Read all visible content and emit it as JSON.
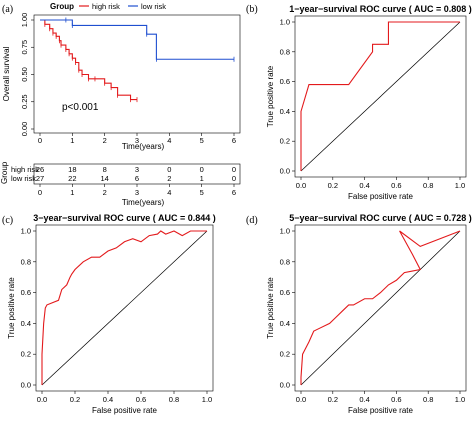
{
  "panel_labels": {
    "a": "(a)",
    "b": "(b)",
    "c": "(c)",
    "d": "(d)"
  },
  "colors": {
    "high": "#e31a1c",
    "low": "#1f4fd0",
    "roc": "#e31a1c",
    "diag": "#000000"
  },
  "chart_data": [
    {
      "type": "line",
      "panel": "a",
      "legend_title": "Group",
      "legend_position": "top",
      "series": [
        {
          "name": "high risk",
          "x": [
            0,
            0.15,
            0.3,
            0.4,
            0.5,
            0.6,
            0.65,
            0.8,
            0.9,
            1.0,
            1.1,
            1.2,
            1.3,
            1.5,
            1.7,
            2.0,
            2.2,
            2.4,
            2.8,
            3.0
          ],
          "y": [
            1.0,
            0.96,
            0.92,
            0.88,
            0.85,
            0.81,
            0.77,
            0.73,
            0.69,
            0.65,
            0.61,
            0.54,
            0.5,
            0.46,
            0.46,
            0.42,
            0.38,
            0.31,
            0.27,
            0.27
          ]
        },
        {
          "name": "low risk",
          "x": [
            0,
            0.8,
            1.0,
            3.3,
            3.6,
            6.0
          ],
          "y": [
            1.0,
            1.0,
            0.95,
            0.87,
            0.64,
            0.64
          ]
        }
      ],
      "ylabel": "Overall survival",
      "xlabel": "Time(years)",
      "xticks": [
        "0",
        "1",
        "2",
        "3",
        "4",
        "5",
        "6"
      ],
      "yticks": [
        "0.00",
        "0.25",
        "0.50",
        "0.75",
        "1.00"
      ],
      "xlim": [
        0,
        6
      ],
      "ylim": [
        0,
        1
      ],
      "annotation": "p<0.001"
    },
    {
      "type": "table",
      "panel": "a",
      "title": "Group",
      "rows": [
        {
          "name": "high risk",
          "values": [
            "26",
            "18",
            "8",
            "3",
            "0",
            "0",
            "0"
          ]
        },
        {
          "name": "low risk",
          "values": [
            "27",
            "22",
            "14",
            "6",
            "2",
            "1",
            "0"
          ]
        }
      ],
      "xlabel": "Time(years)",
      "xticks": [
        "0",
        "1",
        "2",
        "3",
        "4",
        "5",
        "6"
      ]
    },
    {
      "type": "line",
      "panel": "b",
      "title": "1−year−survival ROC curve ( AUC = 0.808 )",
      "xlabel": "False positive rate",
      "ylabel": "True positive rate",
      "xlim": [
        0,
        1
      ],
      "ylim": [
        0,
        1
      ],
      "ticks": [
        "0.0",
        "0.2",
        "0.4",
        "0.6",
        "0.8",
        "1.0"
      ],
      "x": [
        0,
        0,
        0.05,
        0.05,
        0.15,
        0.3,
        0.45,
        0.45,
        0.5,
        0.55,
        0.55,
        1.0
      ],
      "y": [
        0,
        0.4,
        0.58,
        0.58,
        0.58,
        0.58,
        0.8,
        0.85,
        0.85,
        0.85,
        1.0,
        1.0
      ]
    },
    {
      "type": "line",
      "panel": "c",
      "title": "3−year−survival ROC curve ( AUC = 0.844 )",
      "xlabel": "False positive rate",
      "ylabel": "True positive rate",
      "xlim": [
        0,
        1
      ],
      "ylim": [
        0,
        1
      ],
      "ticks": [
        "0.0",
        "0.2",
        "0.4",
        "0.6",
        "0.8",
        "1.0"
      ],
      "x": [
        0,
        0,
        0.01,
        0.02,
        0.03,
        0.1,
        0.12,
        0.15,
        0.17,
        0.18,
        0.2,
        0.25,
        0.3,
        0.35,
        0.4,
        0.45,
        0.5,
        0.55,
        0.6,
        0.65,
        0.7,
        0.72,
        0.75,
        0.8,
        0.85,
        0.9,
        1.0
      ],
      "y": [
        0,
        0.2,
        0.4,
        0.5,
        0.52,
        0.55,
        0.62,
        0.65,
        0.7,
        0.72,
        0.75,
        0.8,
        0.83,
        0.83,
        0.87,
        0.89,
        0.93,
        0.95,
        0.93,
        0.97,
        0.98,
        1.0,
        0.98,
        1.0,
        0.97,
        1.0,
        1.0
      ]
    },
    {
      "type": "line",
      "panel": "d",
      "title": "5−year−survival ROC curve ( AUC = 0.728 )",
      "xlabel": "False positive rate",
      "ylabel": "True positive rate",
      "xlim": [
        0,
        1
      ],
      "ylim": [
        0,
        1
      ],
      "ticks": [
        "0.0",
        "0.2",
        "0.4",
        "0.6",
        "0.8",
        "1.0"
      ],
      "x": [
        0,
        0,
        0.01,
        0.02,
        0.05,
        0.08,
        0.1,
        0.18,
        0.22,
        0.26,
        0.3,
        0.33,
        0.4,
        0.45,
        0.5,
        0.55,
        0.6,
        0.65,
        0.7,
        0.75,
        0.7,
        0.62,
        0.75,
        1.0
      ],
      "y": [
        0,
        0.05,
        0.2,
        0.22,
        0.28,
        0.35,
        0.36,
        0.4,
        0.44,
        0.48,
        0.52,
        0.52,
        0.56,
        0.56,
        0.6,
        0.65,
        0.68,
        0.73,
        0.74,
        0.75,
        0.85,
        1.0,
        0.9,
        1.0
      ]
    }
  ]
}
